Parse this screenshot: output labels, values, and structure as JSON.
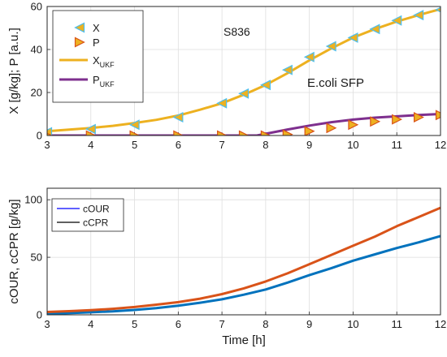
{
  "chart_data": [
    {
      "type": "line",
      "panel": "top",
      "title": "",
      "annotations": [
        "S836",
        "E.coli SFP"
      ],
      "xlabel": "",
      "ylabel": "X [g/kg]; P [a.u.]",
      "xlim": [
        3,
        12
      ],
      "ylim": [
        0,
        60
      ],
      "xticks": [
        3,
        4,
        5,
        6,
        7,
        8,
        9,
        10,
        11,
        12
      ],
      "yticks": [
        0,
        20,
        40,
        60
      ],
      "grid": true,
      "legend_position": "top-left",
      "legend": [
        {
          "label": "X",
          "sub": ""
        },
        {
          "label": "P",
          "sub": ""
        },
        {
          "label": "X",
          "sub": "UKF"
        },
        {
          "label": "P",
          "sub": "UKF"
        }
      ],
      "series": [
        {
          "name": "X",
          "kind": "marker",
          "marker": "triangle-left",
          "face": "#EDB120",
          "edge": "#4DBEEE",
          "x": [
            3,
            4,
            5,
            6,
            7,
            7.5,
            8,
            8.5,
            9,
            9.5,
            10,
            10.5,
            11,
            11.5,
            12
          ],
          "y": [
            1.5,
            3,
            5,
            8.5,
            15,
            19.5,
            23.5,
            30.5,
            36.5,
            41.5,
            45.5,
            49.5,
            53.5,
            56,
            58.5
          ]
        },
        {
          "name": "P",
          "kind": "marker",
          "marker": "triangle-right",
          "face": "#EDB120",
          "edge": "#D95319",
          "x": [
            3,
            4,
            5,
            6,
            7,
            7.5,
            8,
            8.5,
            9,
            9.5,
            10,
            10.5,
            11,
            11.5,
            12
          ],
          "y": [
            0,
            0,
            0,
            0,
            0,
            0,
            0,
            0.5,
            2,
            3.5,
            5,
            6.5,
            7.5,
            8.5,
            9.5
          ]
        },
        {
          "name": "XUKF",
          "kind": "line",
          "color": "#EDB120",
          "x": [
            3,
            3.5,
            4,
            4.5,
            5,
            5.5,
            6,
            6.5,
            7,
            7.5,
            8,
            8.5,
            9,
            9.5,
            10,
            10.5,
            11,
            11.5,
            12
          ],
          "y": [
            2,
            2.7,
            3.5,
            4.5,
            5.8,
            7.3,
            9.3,
            12,
            15,
            19,
            23.5,
            29,
            35,
            40.5,
            45.5,
            49.5,
            53,
            56,
            58.8
          ]
        },
        {
          "name": "PUKF",
          "kind": "line",
          "color": "#7E2F8E",
          "x": [
            3,
            4,
            5,
            6,
            7,
            7.8,
            8,
            8.5,
            9,
            9.5,
            10,
            10.5,
            11,
            11.5,
            12
          ],
          "y": [
            0,
            0,
            0,
            0,
            0,
            0,
            0.8,
            2.8,
            4.6,
            6.2,
            7.4,
            8.3,
            8.9,
            9.5,
            10
          ]
        }
      ]
    },
    {
      "type": "line",
      "panel": "bottom",
      "title": "",
      "xlabel": "Time [h]",
      "ylabel": "cOUR, cCPR [g/kg]",
      "xlim": [
        3,
        12
      ],
      "ylim": [
        0,
        110
      ],
      "xticks": [
        3,
        4,
        5,
        6,
        7,
        8,
        9,
        10,
        11,
        12
      ],
      "yticks": [
        0,
        50,
        100
      ],
      "grid": true,
      "legend_position": "top-left",
      "legend": [
        {
          "label": "cOUR",
          "color": "#0000ff"
        },
        {
          "label": "cCPR",
          "color": "#000000"
        }
      ],
      "series": [
        {
          "name": "cOUR",
          "color": "#0072BD",
          "x": [
            3,
            3.5,
            4,
            4.5,
            5,
            5.5,
            6,
            6.5,
            7,
            7.5,
            8,
            8.5,
            9,
            9.5,
            10,
            10.5,
            11,
            11.5,
            12
          ],
          "y": [
            1,
            1.5,
            2.2,
            3,
            4.2,
            5.8,
            8,
            10.5,
            13.5,
            17.5,
            22,
            28,
            34.5,
            40.5,
            47,
            52.5,
            58,
            63,
            68.5
          ]
        },
        {
          "name": "cCPR",
          "color": "#D95319",
          "x": [
            3,
            3.5,
            4,
            4.5,
            5,
            5.5,
            6,
            6.5,
            7,
            7.5,
            8,
            8.5,
            9,
            9.5,
            10,
            10.5,
            11,
            11.5,
            12
          ],
          "y": [
            2.5,
            3.2,
            4,
            5.2,
            6.8,
            8.8,
            11,
            14,
            18,
            23,
            29,
            36,
            44,
            52,
            60,
            68,
            77,
            85,
            93
          ]
        }
      ]
    }
  ]
}
